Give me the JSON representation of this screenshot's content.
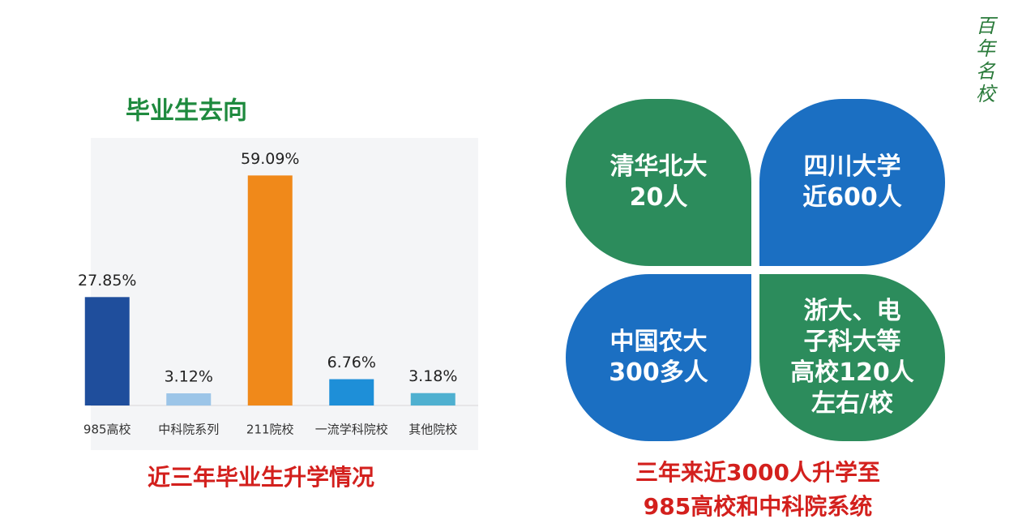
{
  "chart_data": {
    "type": "bar",
    "title": "毕业生去向",
    "caption": "近三年毕业生升学情况",
    "categories": [
      "985高校",
      "中科院系列",
      "211院校",
      "一流学科院校",
      "其他院校"
    ],
    "values": [
      27.85,
      3.12,
      59.09,
      6.76,
      3.18
    ],
    "value_labels": [
      "27.85%",
      "3.12%",
      "59.09%",
      "6.76%",
      "3.18%"
    ],
    "colors": [
      "#1f4e9c",
      "#9cc5e8",
      "#f0891a",
      "#1e8fd8",
      "#4fb0d0"
    ]
  },
  "petals": [
    {
      "lines": [
        "清华北大",
        "20人"
      ]
    },
    {
      "lines": [
        "四川大学",
        "近600人"
      ]
    },
    {
      "lines": [
        "中国农大",
        "300多人"
      ]
    },
    {
      "lines": [
        "浙大、电",
        "子科大等",
        "高校120人",
        "左右/校"
      ]
    }
  ],
  "summary": [
    "三年来近3000人升学至",
    "985高校和中科院系统"
  ],
  "logo": "百年名校"
}
